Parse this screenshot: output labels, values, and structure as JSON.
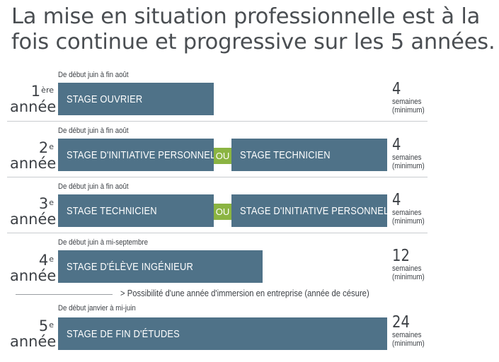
{
  "title": "La mise en situation professionnelle est à la fois continue et progressive sur les 5 années.",
  "or_label": "OU",
  "years": [
    {
      "num": "1",
      "sup": "ère",
      "word": "année",
      "period": "De début juin à fin août",
      "stages": [
        "STAGE OUVRIER"
      ],
      "weeks": "4",
      "unit1": "semaines",
      "unit2": "(minimum)"
    },
    {
      "num": "2",
      "sup": "e",
      "word": "année",
      "period": "De début juin à fin août",
      "stages": [
        "STAGE D'INITIATIVE PERSONNELLE",
        "STAGE TECHNICIEN"
      ],
      "weeks": "4",
      "unit1": "semaines",
      "unit2": "(minimum)"
    },
    {
      "num": "3",
      "sup": "e",
      "word": "année",
      "period": "De début juin à fin août",
      "stages": [
        "STAGE TECHNICIEN",
        "STAGE D'INITIATIVE PERSONNELLE"
      ],
      "weeks": "4",
      "unit1": "semaines",
      "unit2": "(minimum)"
    },
    {
      "num": "4",
      "sup": "e",
      "word": "année",
      "period": "De début juin à mi-septembre",
      "stages": [
        "STAGE D'ÉLÈVE INGÉNIEUR"
      ],
      "weeks": "12",
      "unit1": "semaines",
      "unit2": "(minimum)"
    },
    {
      "num": "5",
      "sup": "e",
      "word": "année",
      "period": "De début janvier à mi-juin",
      "stages": [
        "STAGE DE FIN D'ÉTUDES"
      ],
      "weeks": "24",
      "unit1": "semaines",
      "unit2": "(minimum)"
    }
  ],
  "gap_year_note": "> Possibilité d'une année d'immersion en entreprise (année de césure)",
  "colors": {
    "bar": "#4f7288",
    "or_badge": "#8bb442"
  }
}
